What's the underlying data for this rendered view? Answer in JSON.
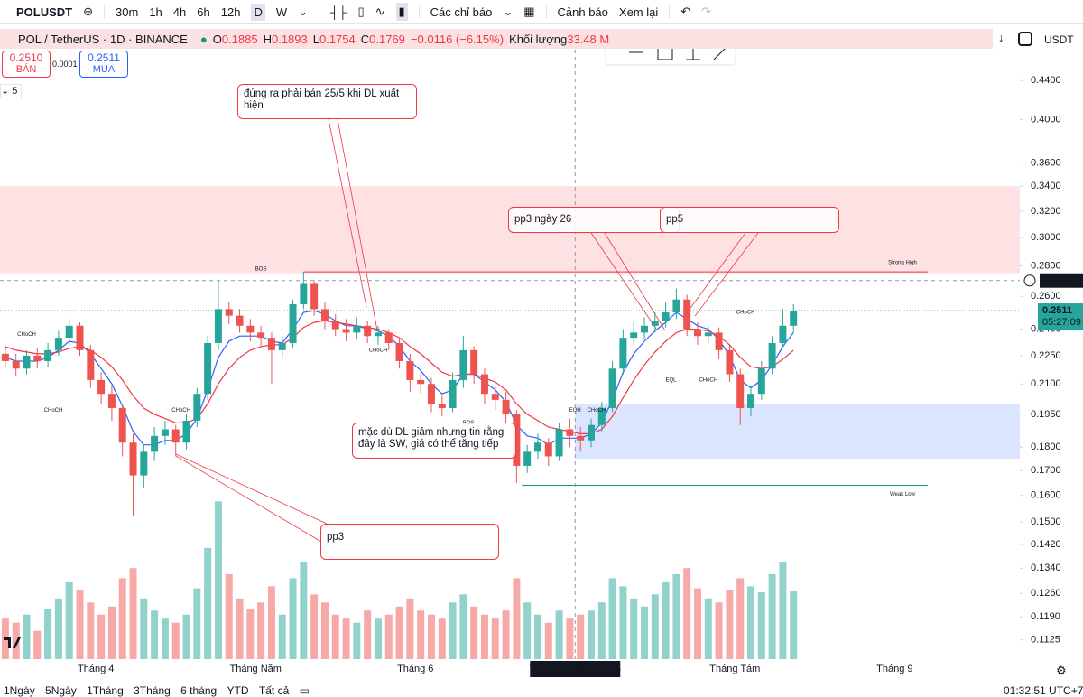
{
  "toolbar": {
    "symbol": "POLUSDT",
    "intervals": [
      "30m",
      "1h",
      "4h",
      "6h",
      "12h",
      "D",
      "W"
    ],
    "indicators": "Các chỉ báo",
    "alerts": "Cảnh báo",
    "replay": "Xem lại"
  },
  "legend": {
    "title": "POL / TetherUS · 1D · BINANCE",
    "ohlc": [
      {
        "key": "O",
        "value": 0.1885
      },
      {
        "key": "H",
        "value": 0.1893
      },
      {
        "key": "L",
        "value": 0.1754
      },
      {
        "key": "C",
        "value": 0.1769
      }
    ],
    "change": "−0.0116 (−6.15%)",
    "volume_label": "Khối lượng",
    "volume": "33.48 M",
    "sell_price": "0.2510",
    "sell_label": "BÁN",
    "spread": "0.0001",
    "buy_price": "0.2511",
    "buy_label": "MUA",
    "indicator_count": "5",
    "currency": "USDT"
  },
  "chart_data": {
    "type": "candlestick",
    "log_scale": true,
    "up_color": "#26a69a",
    "down_color": "#ef5350",
    "xlim": [
      0,
      191.5
    ],
    "xticks": [
      {
        "value": 18,
        "label": "Tháng 4"
      },
      {
        "value": 48,
        "label": "Tháng Năm"
      },
      {
        "value": 78,
        "label": "Tháng 6"
      },
      {
        "value": 108,
        "label": "Th 3 01 Tháng 7 '25"
      },
      {
        "value": 138,
        "label": "Tháng Tám"
      },
      {
        "value": 168,
        "label": "Tháng 9"
      }
    ],
    "ylim": [
      0.11,
      0.46
    ],
    "yticks": [
      {
        "value": 0.44,
        "label": "0.4400"
      },
      {
        "value": 0.4,
        "label": "0.4000"
      },
      {
        "value": 0.36,
        "label": "0.3600"
      },
      {
        "value": 0.34,
        "label": "0.3400"
      },
      {
        "value": 0.32,
        "label": "0.3200"
      },
      {
        "value": 0.3,
        "label": "0.3000"
      },
      {
        "value": 0.28,
        "label": "0.2800"
      },
      {
        "value": 0.26,
        "label": "0.2600"
      },
      {
        "value": 0.24,
        "label": "0.2400"
      },
      {
        "value": 0.225,
        "label": "0.2250"
      },
      {
        "value": 0.21,
        "label": "0.2100"
      },
      {
        "value": 0.195,
        "label": "0.1950"
      },
      {
        "value": 0.18,
        "label": "0.1800"
      },
      {
        "value": 0.17,
        "label": "0.1700"
      },
      {
        "value": 0.16,
        "label": "0.1600"
      },
      {
        "value": 0.15,
        "label": "0.1500"
      },
      {
        "value": 0.142,
        "label": "0.1420"
      },
      {
        "value": 0.134,
        "label": "0.1340"
      },
      {
        "value": 0.126,
        "label": "0.1260"
      },
      {
        "value": 0.119,
        "label": "0.1190"
      },
      {
        "value": 0.1125,
        "label": "0.1125"
      }
    ],
    "x": [
      1,
      3,
      5,
      7,
      9,
      11,
      13,
      15,
      17,
      19,
      21,
      23,
      25,
      27,
      29,
      31,
      33,
      35,
      37,
      39,
      41,
      43,
      45,
      47,
      49,
      51,
      53,
      55,
      57,
      59,
      61,
      63,
      65,
      67,
      69,
      71,
      73,
      75,
      77,
      79,
      81,
      83,
      85,
      87,
      89,
      91,
      93,
      95,
      97,
      99,
      101,
      103,
      105,
      107,
      109,
      111,
      113,
      115,
      117,
      119,
      121,
      123,
      125,
      127,
      129,
      131,
      133,
      135,
      137,
      139,
      141,
      143,
      145,
      147,
      149
    ],
    "open": [
      0.226,
      0.222,
      0.218,
      0.225,
      0.222,
      0.228,
      0.235,
      0.242,
      0.228,
      0.212,
      0.205,
      0.198,
      0.182,
      0.168,
      0.178,
      0.185,
      0.188,
      0.182,
      0.192,
      0.205,
      0.232,
      0.252,
      0.248,
      0.242,
      0.238,
      0.235,
      0.228,
      0.232,
      0.255,
      0.268,
      0.252,
      0.245,
      0.24,
      0.238,
      0.242,
      0.236,
      0.238,
      0.232,
      0.222,
      0.212,
      0.21,
      0.2,
      0.198,
      0.212,
      0.228,
      0.215,
      0.205,
      0.202,
      0.195,
      0.172,
      0.178,
      0.182,
      0.176,
      0.188,
      0.185,
      0.183,
      0.19,
      0.198,
      0.218,
      0.235,
      0.238,
      0.242,
      0.245,
      0.25,
      0.258,
      0.24,
      0.236,
      0.238,
      0.228,
      0.215,
      0.198,
      0.205,
      0.218,
      0.232,
      0.242
    ],
    "high": [
      0.229,
      0.226,
      0.228,
      0.229,
      0.232,
      0.239,
      0.246,
      0.244,
      0.231,
      0.216,
      0.209,
      0.2,
      0.186,
      0.181,
      0.189,
      0.192,
      0.19,
      0.195,
      0.208,
      0.236,
      0.27,
      0.256,
      0.252,
      0.246,
      0.242,
      0.238,
      0.236,
      0.258,
      0.276,
      0.27,
      0.256,
      0.249,
      0.246,
      0.247,
      0.245,
      0.242,
      0.24,
      0.235,
      0.226,
      0.216,
      0.213,
      0.204,
      0.216,
      0.236,
      0.23,
      0.218,
      0.209,
      0.206,
      0.197,
      0.181,
      0.186,
      0.184,
      0.191,
      0.193,
      0.189,
      0.193,
      0.201,
      0.222,
      0.24,
      0.244,
      0.247,
      0.25,
      0.256,
      0.265,
      0.261,
      0.244,
      0.242,
      0.241,
      0.231,
      0.218,
      0.209,
      0.222,
      0.236,
      0.252,
      0.255
    ],
    "low": [
      0.219,
      0.214,
      0.215,
      0.218,
      0.219,
      0.225,
      0.231,
      0.225,
      0.208,
      0.2,
      0.192,
      0.176,
      0.152,
      0.163,
      0.174,
      0.181,
      0.176,
      0.179,
      0.189,
      0.202,
      0.228,
      0.243,
      0.238,
      0.233,
      0.23,
      0.21,
      0.224,
      0.229,
      0.252,
      0.248,
      0.24,
      0.236,
      0.233,
      0.234,
      0.232,
      0.231,
      0.228,
      0.218,
      0.206,
      0.205,
      0.196,
      0.194,
      0.196,
      0.208,
      0.21,
      0.2,
      0.197,
      0.19,
      0.165,
      0.169,
      0.175,
      0.172,
      0.174,
      0.18,
      0.178,
      0.18,
      0.187,
      0.196,
      0.215,
      0.231,
      0.234,
      0.238,
      0.241,
      0.246,
      0.236,
      0.231,
      0.232,
      0.223,
      0.211,
      0.19,
      0.194,
      0.202,
      0.215,
      0.229,
      0.238
    ],
    "close": [
      0.222,
      0.218,
      0.225,
      0.222,
      0.228,
      0.235,
      0.242,
      0.228,
      0.212,
      0.205,
      0.198,
      0.182,
      0.168,
      0.178,
      0.185,
      0.188,
      0.182,
      0.192,
      0.205,
      0.232,
      0.252,
      0.248,
      0.242,
      0.238,
      0.235,
      0.228,
      0.232,
      0.255,
      0.268,
      0.252,
      0.245,
      0.24,
      0.238,
      0.242,
      0.236,
      0.238,
      0.232,
      0.222,
      0.212,
      0.21,
      0.2,
      0.198,
      0.212,
      0.228,
      0.215,
      0.205,
      0.202,
      0.195,
      0.172,
      0.178,
      0.182,
      0.176,
      0.188,
      0.185,
      0.183,
      0.19,
      0.198,
      0.218,
      0.235,
      0.238,
      0.242,
      0.245,
      0.25,
      0.258,
      0.24,
      0.236,
      0.238,
      0.228,
      0.215,
      0.198,
      0.205,
      0.218,
      0.232,
      0.242,
      0.2511
    ],
    "volume": [
      20,
      18,
      22,
      14,
      25,
      30,
      38,
      34,
      28,
      22,
      26,
      40,
      45,
      30,
      24,
      20,
      18,
      22,
      35,
      55,
      78,
      42,
      30,
      25,
      28,
      36,
      22,
      40,
      48,
      32,
      28,
      22,
      20,
      18,
      24,
      20,
      22,
      26,
      30,
      24,
      22,
      20,
      28,
      32,
      26,
      22,
      20,
      24,
      40,
      28,
      22,
      18,
      24,
      20,
      22,
      24,
      28,
      40,
      36,
      30,
      26,
      32,
      38,
      42,
      45,
      35,
      30,
      28,
      34,
      40,
      36,
      33,
      42,
      48,
      33.48
    ],
    "volume_lim": [
      0,
      100
    ],
    "lines": [
      {
        "color": "#2962ff",
        "values": [
          0.224,
          0.222,
          0.222,
          0.222,
          0.224,
          0.228,
          0.233,
          0.232,
          0.226,
          0.218,
          0.21,
          0.199,
          0.187,
          0.181,
          0.181,
          0.183,
          0.183,
          0.186,
          0.193,
          0.207,
          0.224,
          0.233,
          0.236,
          0.236,
          0.236,
          0.233,
          0.232,
          0.24,
          0.25,
          0.251,
          0.249,
          0.245,
          0.242,
          0.242,
          0.24,
          0.239,
          0.236,
          0.23,
          0.222,
          0.217,
          0.21,
          0.205,
          0.207,
          0.215,
          0.215,
          0.211,
          0.207,
          0.201,
          0.19,
          0.185,
          0.184,
          0.181,
          0.184,
          0.184,
          0.184,
          0.186,
          0.191,
          0.202,
          0.216,
          0.226,
          0.233,
          0.239,
          0.244,
          0.25,
          0.246,
          0.242,
          0.24,
          0.234,
          0.225,
          0.212,
          0.208,
          0.212,
          0.22,
          0.23,
          0.238
        ]
      },
      {
        "color": "#f23645",
        "values": [
          0.23,
          0.228,
          0.227,
          0.226,
          0.226,
          0.227,
          0.229,
          0.23,
          0.228,
          0.224,
          0.219,
          0.212,
          0.204,
          0.198,
          0.195,
          0.193,
          0.191,
          0.191,
          0.193,
          0.2,
          0.21,
          0.218,
          0.224,
          0.228,
          0.23,
          0.231,
          0.231,
          0.235,
          0.241,
          0.244,
          0.245,
          0.244,
          0.243,
          0.242,
          0.241,
          0.24,
          0.238,
          0.235,
          0.23,
          0.226,
          0.221,
          0.216,
          0.214,
          0.215,
          0.215,
          0.213,
          0.211,
          0.207,
          0.2,
          0.195,
          0.192,
          0.189,
          0.188,
          0.187,
          0.186,
          0.186,
          0.188,
          0.194,
          0.203,
          0.212,
          0.22,
          0.227,
          0.233,
          0.238,
          0.24,
          0.24,
          0.239,
          0.236,
          0.231,
          0.224,
          0.219,
          0.218,
          0.219,
          0.223,
          0.228
        ]
      }
    ],
    "zones": [
      {
        "from": 0.275,
        "to": 0.34,
        "x_from": 0,
        "color": "rgba(242,54,69,0.15)"
      },
      {
        "from": 0.175,
        "to": 0.2,
        "x_from": 108,
        "color": "rgba(41,98,255,0.17)"
      }
    ],
    "levels": [
      {
        "name": "Strong High",
        "value": 0.276,
        "x_from": 57,
        "color": "#f23645"
      },
      {
        "name": "Weak Low",
        "value": 0.164,
        "x_from": 98,
        "color": "#089981"
      }
    ],
    "structure_labels": [
      {
        "text": "CHoCH",
        "x": 5,
        "y": 0.237,
        "color": "#089981"
      },
      {
        "text": "CHoCH",
        "x": 10,
        "y": 0.197,
        "color": "#f23645"
      },
      {
        "text": "CHoCH",
        "x": 34,
        "y": 0.197,
        "color": "#089981"
      },
      {
        "text": "BOS",
        "x": 49,
        "y": 0.278,
        "color": "#089981"
      },
      {
        "text": "CHoCH",
        "x": 71,
        "y": 0.228,
        "color": "#f23645"
      },
      {
        "text": "BOS",
        "x": 88,
        "y": 0.191,
        "color": "#f23645"
      },
      {
        "text": "EQH",
        "x": 108,
        "y": 0.197,
        "color": "#f23645"
      },
      {
        "text": "CHoCH",
        "x": 112,
        "y": 0.197,
        "color": "#089981"
      },
      {
        "text": "EQL",
        "x": 126,
        "y": 0.212,
        "color": "#089981"
      },
      {
        "text": "CHoCH",
        "x": 133,
        "y": 0.212,
        "color": "#f23645"
      },
      {
        "text": "CHoCH",
        "x": 140,
        "y": 0.25,
        "color": "#089981"
      }
    ],
    "crosshair": {
      "x": 108,
      "price": 0.2702
    },
    "last_price": 0.2511,
    "countdown": "05:27:09"
  },
  "annotations": [
    {
      "text": "đúng ra phải bán 25/5 khi DL xuất hiện"
    },
    {
      "text": "pp3 ngày 26"
    },
    {
      "text": "pp5"
    },
    {
      "text": "mặc dù DL giảm nhưng tin rằng đây là SW, giá có thể tăng tiếp"
    },
    {
      "text": "pp3"
    }
  ],
  "footer": {
    "ranges": [
      "1Ngày",
      "5Ngày",
      "1Tháng",
      "3Tháng",
      "6 tháng",
      "YTD",
      "Tất cả"
    ],
    "clock": "01:32:51 UTC+7"
  }
}
